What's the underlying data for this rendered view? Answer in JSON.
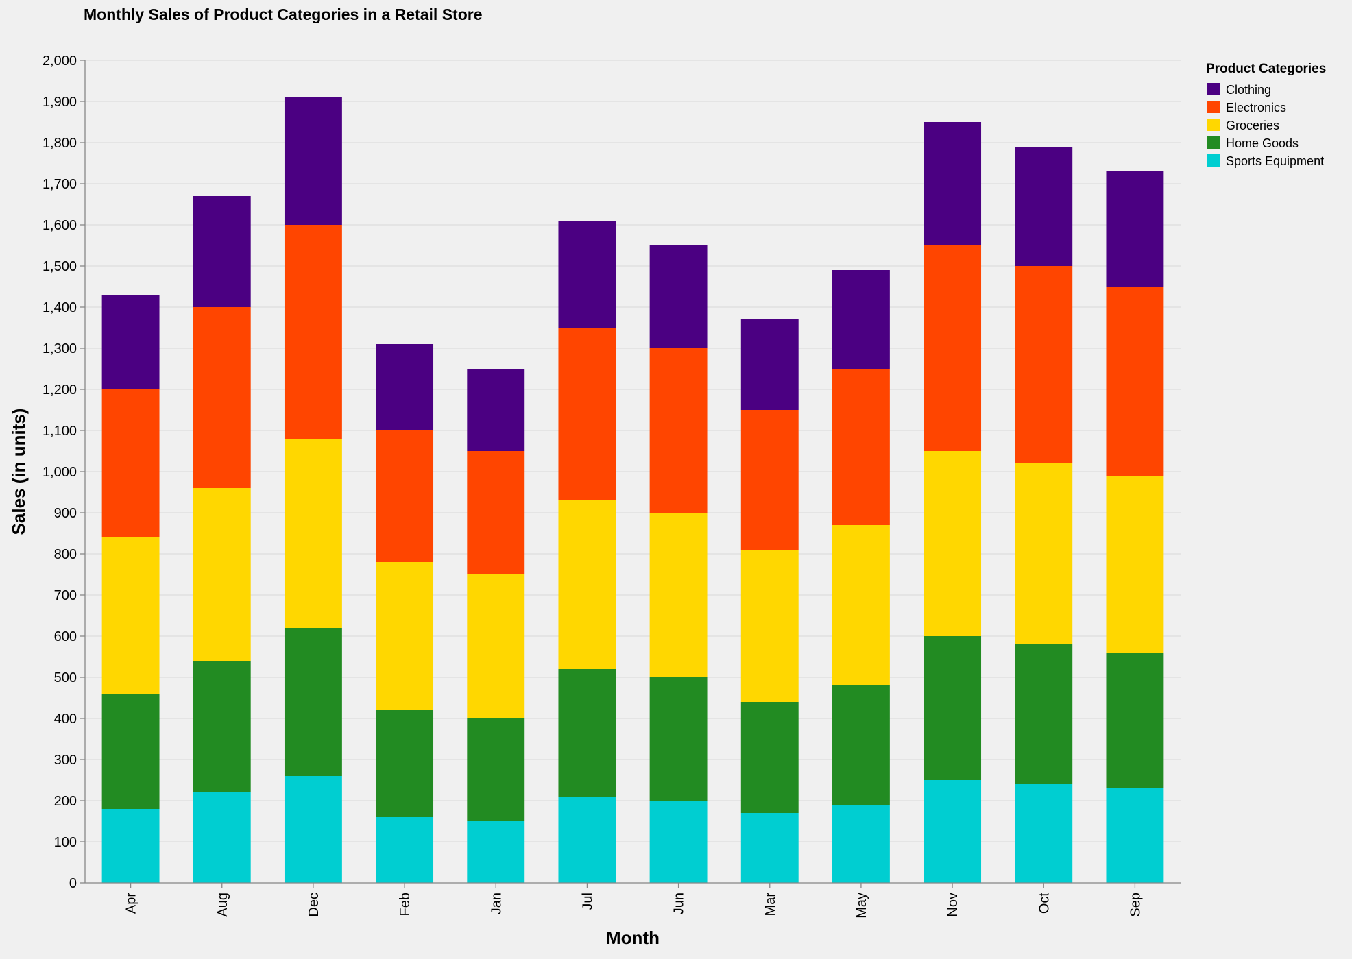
{
  "chart_data": {
    "type": "bar",
    "stacked": true,
    "title": "Monthly Sales of Product Categories in a Retail Store",
    "xlabel": "Month",
    "ylabel": "Sales (in units)",
    "ylim": [
      0,
      2000
    ],
    "y_ticks": [
      0,
      100,
      200,
      300,
      400,
      500,
      600,
      700,
      800,
      900,
      1000,
      1100,
      1200,
      1300,
      1400,
      1500,
      1600,
      1700,
      1800,
      1900,
      2000
    ],
    "y_tick_labels": [
      "0",
      "100",
      "200",
      "300",
      "400",
      "500",
      "600",
      "700",
      "800",
      "900",
      "1,000",
      "1,100",
      "1,200",
      "1,300",
      "1,400",
      "1,500",
      "1,600",
      "1,700",
      "1,800",
      "1,900",
      "2,000"
    ],
    "grid": true,
    "legend_title": "Product Categories",
    "legend_position": "top-right",
    "categories": [
      "Apr",
      "Aug",
      "Dec",
      "Feb",
      "Jan",
      "Jul",
      "Jun",
      "Mar",
      "May",
      "Nov",
      "Oct",
      "Sep"
    ],
    "stack_order": [
      "Sports Equipment",
      "Home Goods",
      "Groceries",
      "Electronics",
      "Clothing"
    ],
    "series": [
      {
        "name": "Clothing",
        "color": "#4b0082",
        "values": [
          230,
          270,
          310,
          210,
          200,
          260,
          250,
          220,
          240,
          300,
          290,
          280
        ]
      },
      {
        "name": "Electronics",
        "color": "#ff4500",
        "values": [
          360,
          440,
          520,
          320,
          300,
          420,
          400,
          340,
          380,
          500,
          480,
          460
        ]
      },
      {
        "name": "Groceries",
        "color": "#ffd700",
        "values": [
          380,
          420,
          460,
          360,
          350,
          410,
          400,
          370,
          390,
          450,
          440,
          430
        ]
      },
      {
        "name": "Home Goods",
        "color": "#228b22",
        "values": [
          280,
          320,
          360,
          260,
          250,
          310,
          300,
          270,
          290,
          350,
          340,
          330
        ]
      },
      {
        "name": "Sports Equipment",
        "color": "#00ced1",
        "values": [
          180,
          220,
          260,
          160,
          150,
          210,
          200,
          170,
          190,
          250,
          240,
          230
        ]
      }
    ]
  }
}
